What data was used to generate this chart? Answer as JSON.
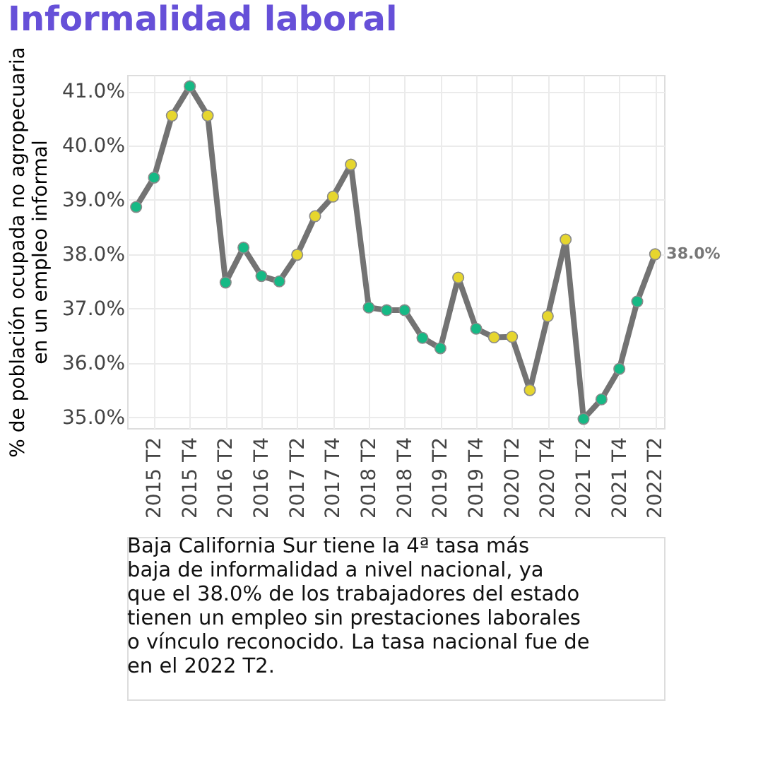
{
  "chart_data": {
    "type": "line",
    "title": "Informalidad laboral",
    "ylabel": "% de población ocupada no agropecuaria\nen un empleo informal",
    "categories": [
      null,
      "2015 T2",
      null,
      "2015 T4",
      null,
      "2016 T2",
      null,
      "2016 T4",
      null,
      "2017 T2",
      null,
      "2017 T4",
      null,
      "2018 T2",
      null,
      "2018 T4",
      null,
      "2019 T2",
      null,
      "2019 T4",
      null,
      "2020 T2",
      null,
      "2020 T4",
      null,
      "2021 T2",
      null,
      "2021 T4",
      null,
      "2022 T2"
    ],
    "series": [
      {
        "color": "#737373",
        "values": [
          38.87,
          39.41,
          40.55,
          41.09,
          40.55,
          37.48,
          38.12,
          37.6,
          37.5,
          37.99,
          38.7,
          39.06,
          39.65,
          37.02,
          36.97,
          36.97,
          36.46,
          36.27,
          37.57,
          36.63,
          36.47,
          36.48,
          35.5,
          36.86,
          38.27,
          34.97,
          35.33,
          35.89,
          37.13,
          38.0
        ]
      }
    ],
    "colors": [
      "#16b985",
      "#16b985",
      "#e6d62e",
      "#16b985",
      "#e6d62e",
      "#16b985",
      "#16b985",
      "#16b985",
      "#16b985",
      "#e6d62e",
      "#e6d62e",
      "#e6d62e",
      "#e6d62e",
      "#16b985",
      "#16b985",
      "#16b985",
      "#16b985",
      "#16b985",
      "#e6d62e",
      "#16b985",
      "#e6d62e",
      "#e6d62e",
      "#e6d62e",
      "#e6d62e",
      "#e6d62e",
      "#16b985",
      "#16b985",
      "#16b985",
      "#16b985",
      "#e6d62e"
    ],
    "value_labels": [
      null,
      null,
      null,
      null,
      null,
      null,
      null,
      null,
      null,
      null,
      null,
      null,
      null,
      null,
      null,
      null,
      null,
      null,
      null,
      null,
      null,
      null,
      null,
      null,
      null,
      null,
      null,
      null,
      null,
      "38.0%"
    ],
    "ylim": [
      34.8,
      41.3
    ],
    "yticks": [
      {
        "value": 35,
        "label": "35.0%"
      },
      {
        "value": 36,
        "label": "36.0%"
      },
      {
        "value": 37,
        "label": "37.0%"
      },
      {
        "value": 38,
        "label": "38.0%"
      },
      {
        "value": 39,
        "label": "39.0%"
      },
      {
        "value": 40,
        "label": "40.0%"
      },
      {
        "value": 41,
        "label": "41.0%"
      }
    ],
    "grid": true,
    "marker": "circle",
    "line_style": "solid",
    "annotations": [
      "Baja California Sur tiene la 4ª tasa más\nbaja de informalidad a nivel nacional, ya\nque el 38.0% de los trabajadores del estado\ntienen un empleo sin prestaciones laborales\no vínculo reconocido. La tasa nacional fue de\nen el 2022 T2."
    ]
  }
}
